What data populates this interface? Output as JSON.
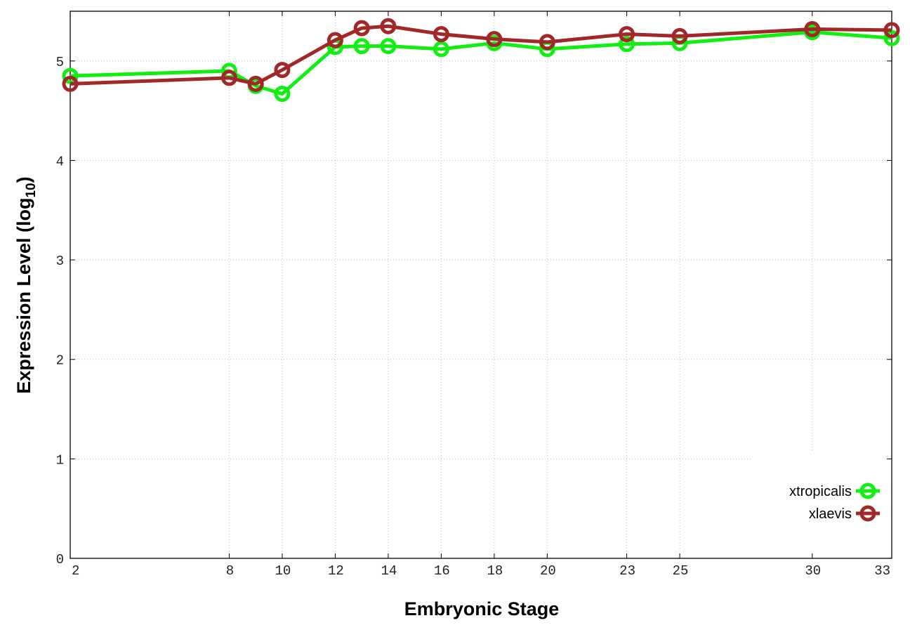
{
  "chart_data": {
    "type": "line",
    "title": "",
    "xlabel": "Embryonic Stage",
    "ylabel": "Expression Level (log10)",
    "ylabel_main": "Expression Level (log",
    "ylabel_sub": "10",
    "ylabel_close": ")",
    "xlim": [
      2,
      33
    ],
    "ylim": [
      0,
      5.5
    ],
    "x_ticks": [
      2,
      8,
      10,
      12,
      14,
      16,
      18,
      20,
      23,
      25,
      30,
      33
    ],
    "y_ticks": [
      0,
      1,
      2,
      3,
      4,
      5
    ],
    "grid": true,
    "legend_position": "bottom-right",
    "x": [
      2,
      8,
      9,
      10,
      12,
      13,
      14,
      16,
      18,
      20,
      23,
      25,
      30,
      33
    ],
    "series": [
      {
        "name": "xtropicalis",
        "color": "#11ee11",
        "values": [
          4.85,
          4.9,
          4.75,
          4.67,
          5.14,
          5.15,
          5.15,
          5.12,
          5.18,
          5.12,
          5.17,
          5.18,
          5.29,
          5.23
        ]
      },
      {
        "name": "xlaevis",
        "color": "#a02828",
        "values": [
          4.77,
          4.83,
          4.77,
          4.91,
          5.21,
          5.33,
          5.35,
          5.27,
          5.22,
          5.19,
          5.27,
          5.25,
          5.32,
          5.31
        ]
      }
    ]
  }
}
